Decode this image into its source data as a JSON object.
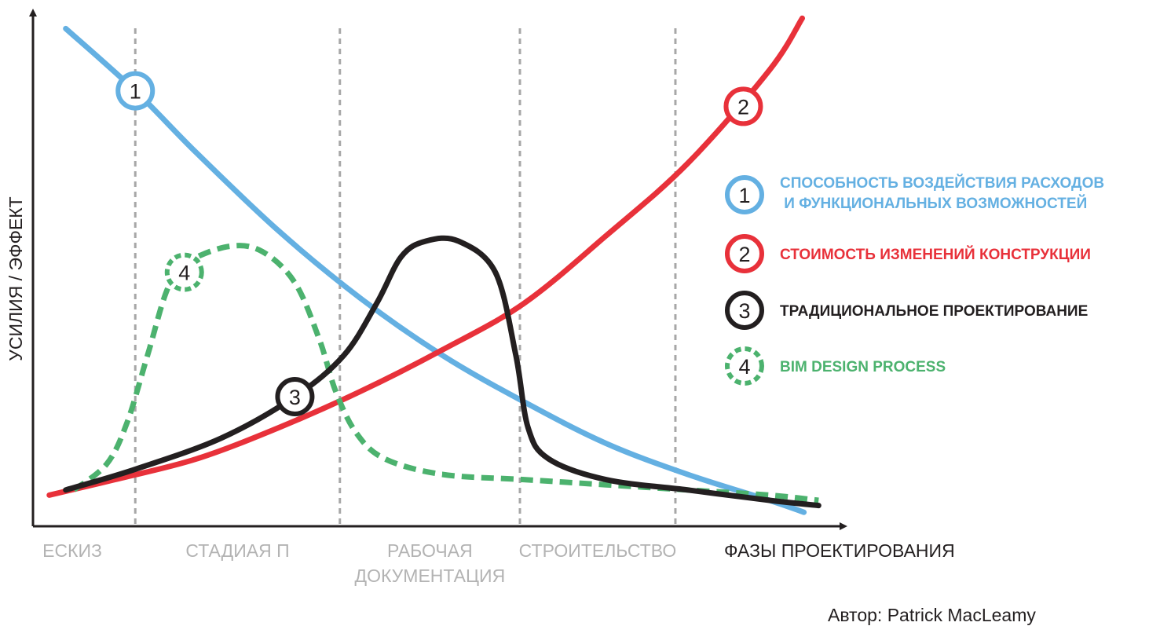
{
  "chart_data": {
    "type": "line",
    "xlabel": "ФАЗЫ ПРОЕКТИРОВАНИЯ",
    "ylabel": "УСИЛИЯ / ЭФФЕКТ",
    "phases": [
      "ЕСКИЗ",
      "СТАДИАЯ П",
      "РАБОЧАЯ ДОКУМЕНТАЦИЯ",
      "СТРОИТЕЛЬСТВО"
    ],
    "phase_label_lines": [
      [
        "ЕСКИЗ"
      ],
      [
        "СТАДИАЯ П"
      ],
      [
        "РАБОЧАЯ",
        "ДОКУМЕНТАЦИЯ"
      ],
      [
        "СТРОИТЕЛЬСТВО"
      ]
    ],
    "phase_boundaries": [
      0.125,
      0.375,
      0.595,
      0.785
    ],
    "xlim": [
      0,
      1
    ],
    "ylim": [
      0,
      1
    ],
    "grid": false,
    "legend_position": "right",
    "series": [
      {
        "id": "1",
        "color": "#64b0e2",
        "dash": false,
        "legend_lines": [
          "СПОСОБНОСТЬ ВОЗДЕЙСТВИЯ РАСХОДОВ",
          " И ФУНКЦИОНАЛЬНЫХ ВОЗМОЖНОСТЕЙ"
        ],
        "points": [
          [
            0.04,
            0.96
          ],
          [
            0.125,
            0.84
          ],
          [
            0.2,
            0.72
          ],
          [
            0.3,
            0.57
          ],
          [
            0.4,
            0.44
          ],
          [
            0.5,
            0.33
          ],
          [
            0.6,
            0.24
          ],
          [
            0.7,
            0.16
          ],
          [
            0.8,
            0.1
          ],
          [
            0.9,
            0.05
          ],
          [
            0.942,
            0.027
          ]
        ]
      },
      {
        "id": "2",
        "color": "#e8313a",
        "dash": false,
        "legend_lines": [
          "СТОИМОСТЬ ИЗМЕНЕНИЙ КОНСТРУКЦИИ"
        ],
        "points": [
          [
            0.02,
            0.06
          ],
          [
            0.1,
            0.09
          ],
          [
            0.2,
            0.13
          ],
          [
            0.3,
            0.19
          ],
          [
            0.4,
            0.26
          ],
          [
            0.5,
            0.34
          ],
          [
            0.6,
            0.43
          ],
          [
            0.7,
            0.56
          ],
          [
            0.8,
            0.7
          ],
          [
            0.9,
            0.88
          ],
          [
            0.94,
            0.98
          ]
        ]
      },
      {
        "id": "3",
        "color": "#231f20",
        "dash": false,
        "legend_lines": [
          "ТРАДИЦИОНАЛЬНОЕ ПРОЕКТИРОВАНИЕ"
        ],
        "points": [
          [
            0.04,
            0.07
          ],
          [
            0.125,
            0.11
          ],
          [
            0.23,
            0.17
          ],
          [
            0.32,
            0.25
          ],
          [
            0.38,
            0.33
          ],
          [
            0.42,
            0.43
          ],
          [
            0.45,
            0.52
          ],
          [
            0.48,
            0.55
          ],
          [
            0.52,
            0.55
          ],
          [
            0.565,
            0.49
          ],
          [
            0.59,
            0.33
          ],
          [
            0.605,
            0.19
          ],
          [
            0.63,
            0.13
          ],
          [
            0.7,
            0.09
          ],
          [
            0.8,
            0.07
          ],
          [
            0.9,
            0.05
          ],
          [
            0.96,
            0.04
          ]
        ]
      },
      {
        "id": "4",
        "color": "#4cb26e",
        "dash": true,
        "legend_lines": [
          "BIM DESIGN PROCESS"
        ],
        "points": [
          [
            0.05,
            0.07
          ],
          [
            0.09,
            0.12
          ],
          [
            0.115,
            0.2
          ],
          [
            0.14,
            0.33
          ],
          [
            0.165,
            0.46
          ],
          [
            0.19,
            0.51
          ],
          [
            0.24,
            0.54
          ],
          [
            0.28,
            0.53
          ],
          [
            0.32,
            0.47
          ],
          [
            0.35,
            0.36
          ],
          [
            0.37,
            0.26
          ],
          [
            0.395,
            0.18
          ],
          [
            0.43,
            0.13
          ],
          [
            0.5,
            0.1
          ],
          [
            0.6,
            0.09
          ],
          [
            0.7,
            0.08
          ],
          [
            0.8,
            0.07
          ],
          [
            0.9,
            0.06
          ],
          [
            0.96,
            0.05
          ]
        ]
      }
    ],
    "markers": [
      {
        "id": "1",
        "x": 0.125,
        "y": 0.84
      },
      {
        "id": "2",
        "x": 0.868,
        "y": 0.81
      },
      {
        "id": "3",
        "x": 0.32,
        "y": 0.25
      },
      {
        "id": "4",
        "x": 0.185,
        "y": 0.49
      }
    ]
  },
  "author": "Автор: Patrick MacLeamy"
}
